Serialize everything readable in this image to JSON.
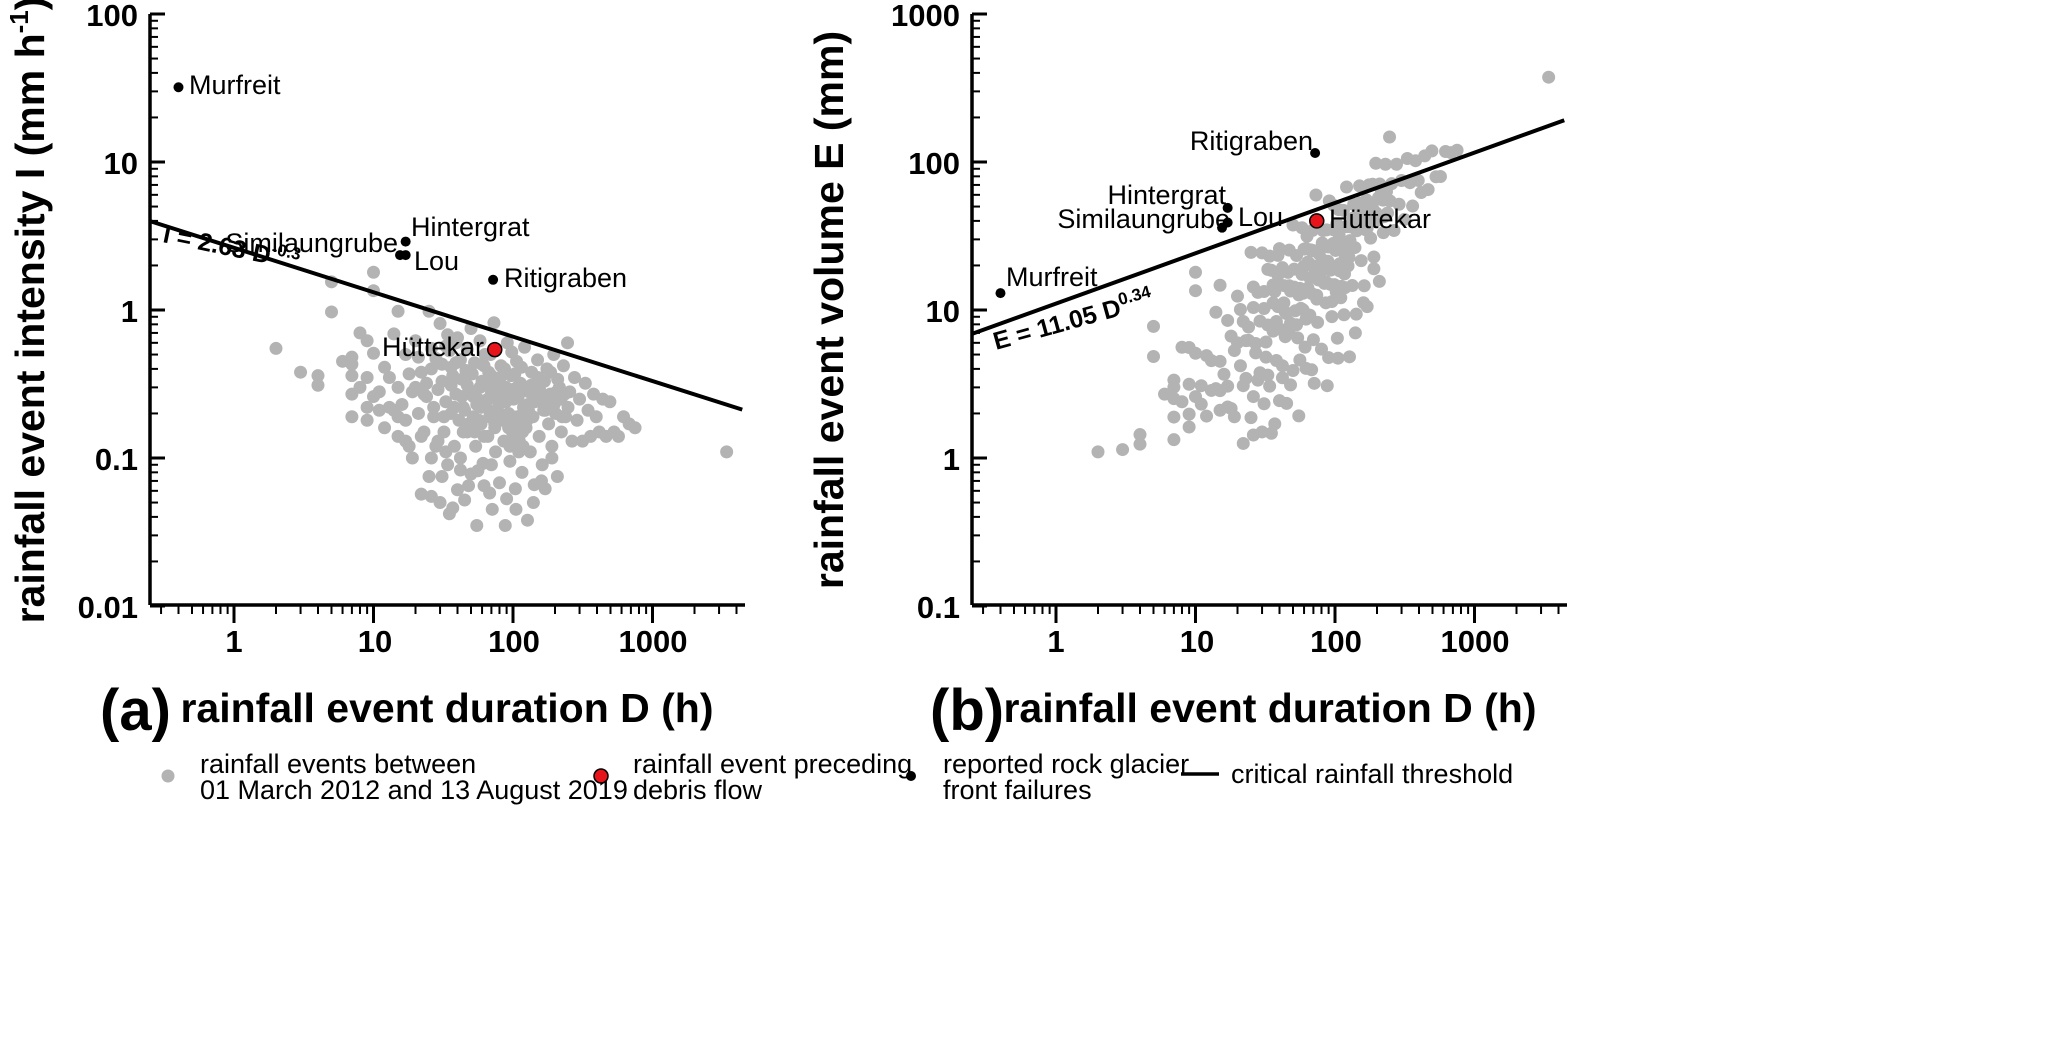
{
  "chart_data": [
    {
      "type": "scatter",
      "panel_label": "(a)",
      "xlabel": "rainfall event duration D (h)",
      "ylabel_main": "rainfall event intensity I (mm h",
      "ylabel_sup": "-1",
      "ylabel_end": ")",
      "xscale": "log",
      "yscale": "log",
      "xlim": [
        0.25,
        4500
      ],
      "ylim": [
        0.01,
        100
      ],
      "x_ticks": [
        "1",
        "10",
        "100",
        "1000"
      ],
      "y_ticks": [
        "0.01",
        "0.1",
        "1",
        "10",
        "100"
      ],
      "grid": false,
      "threshold": {
        "label": "I = 2.63 D",
        "exponent_label": "-0.3",
        "coefficient": 2.63,
        "exponent": -0.3
      },
      "rock_glacier_failures": [
        {
          "name": "Murfreit",
          "x": 0.4,
          "y": 32
        },
        {
          "name": "Hintergrat",
          "x": 17,
          "y": 2.9
        },
        {
          "name": "Similaungrube",
          "x": 15.5,
          "y": 2.35
        },
        {
          "name": "Lou",
          "x": 17,
          "y": 2.35
        },
        {
          "name": "Ritigraben",
          "x": 72,
          "y": 1.6
        }
      ],
      "debris_flow_event": {
        "name": "Hüttekar",
        "x": 74,
        "y": 0.54
      },
      "rainfall_events": [
        [
          2,
          0.55
        ],
        [
          3,
          0.38
        ],
        [
          4,
          0.36
        ],
        [
          4,
          0.31
        ],
        [
          5,
          1.55
        ],
        [
          5,
          0.97
        ],
        [
          6,
          0.45
        ],
        [
          7,
          0.48
        ],
        [
          7,
          0.43
        ],
        [
          7,
          0.36
        ],
        [
          7,
          0.27
        ],
        [
          7,
          0.19
        ],
        [
          8,
          0.7
        ],
        [
          9,
          0.62
        ],
        [
          9,
          0.35
        ],
        [
          9,
          0.22
        ],
        [
          10,
          1.8
        ],
        [
          10,
          1.35
        ],
        [
          10,
          0.51
        ],
        [
          10,
          0.26
        ],
        [
          11,
          0.21
        ],
        [
          12,
          0.41
        ],
        [
          12,
          0.16
        ],
        [
          13,
          0.35
        ],
        [
          14,
          0.69
        ],
        [
          14,
          0.21
        ],
        [
          15,
          0.98
        ],
        [
          15,
          0.3
        ],
        [
          15,
          0.14
        ],
        [
          16,
          0.23
        ],
        [
          17,
          0.5
        ],
        [
          17,
          0.18
        ],
        [
          18,
          0.12
        ],
        [
          19,
          0.28
        ],
        [
          20,
          0.62
        ],
        [
          21,
          0.48
        ],
        [
          21,
          0.2
        ],
        [
          22,
          0.38
        ],
        [
          22,
          0.057
        ],
        [
          23,
          0.15
        ],
        [
          24,
          0.26
        ],
        [
          25,
          0.98
        ],
        [
          25,
          0.075
        ],
        [
          26,
          0.4
        ],
        [
          26,
          0.055
        ],
        [
          27,
          0.19
        ],
        [
          28,
          0.12
        ],
        [
          29,
          0.29
        ],
        [
          30,
          0.81
        ],
        [
          30,
          0.05
        ],
        [
          31,
          0.43
        ],
        [
          31,
          0.075
        ],
        [
          32,
          0.15
        ],
        [
          33,
          0.24
        ],
        [
          34,
          0.68
        ],
        [
          34,
          0.09
        ],
        [
          35,
          0.53
        ],
        [
          35,
          0.042
        ],
        [
          36,
          0.2
        ],
        [
          37,
          0.36
        ],
        [
          38,
          0.12
        ],
        [
          39,
          0.27
        ],
        [
          40,
          0.65
        ],
        [
          40,
          0.061
        ],
        [
          41,
          0.18
        ],
        [
          42,
          0.46
        ],
        [
          42,
          0.1
        ],
        [
          44,
          0.22
        ],
        [
          45,
          0.052
        ],
        [
          46,
          0.39
        ],
        [
          47,
          0.15
        ],
        [
          48,
          0.28
        ],
        [
          50,
          0.75
        ],
        [
          50,
          0.078
        ],
        [
          52,
          0.19
        ],
        [
          53,
          0.44
        ],
        [
          54,
          0.12
        ],
        [
          55,
          0.035
        ],
        [
          56,
          0.25
        ],
        [
          58,
          0.62
        ],
        [
          59,
          0.17
        ],
        [
          60,
          0.33
        ],
        [
          61,
          0.092
        ],
        [
          63,
          0.5
        ],
        [
          64,
          0.22
        ],
        [
          66,
          0.14
        ],
        [
          67,
          0.38
        ],
        [
          68,
          0.058
        ],
        [
          70,
          0.28
        ],
        [
          71,
          0.045
        ],
        [
          73,
          0.82
        ],
        [
          74,
          0.16
        ],
        [
          75,
          0.11
        ],
        [
          77,
          0.31
        ],
        [
          79,
          0.23
        ],
        [
          80,
          0.068
        ],
        [
          82,
          0.42
        ],
        [
          84,
          0.18
        ],
        [
          86,
          0.13
        ],
        [
          88,
          0.035
        ],
        [
          89,
          0.3
        ],
        [
          91,
          0.6
        ],
        [
          93,
          0.2
        ],
        [
          95,
          0.095
        ],
        [
          97,
          0.36
        ],
        [
          99,
          0.15
        ],
        [
          101,
          0.25
        ],
        [
          104,
          0.062
        ],
        [
          106,
          0.45
        ],
        [
          108,
          0.19
        ],
        [
          111,
          0.13
        ],
        [
          113,
          0.32
        ],
        [
          116,
          0.08
        ],
        [
          119,
          0.22
        ],
        [
          121,
          0.56
        ],
        [
          124,
          0.16
        ],
        [
          127,
          0.038
        ],
        [
          130,
          0.28
        ],
        [
          133,
          0.11
        ],
        [
          136,
          0.38
        ],
        [
          139,
          0.19
        ],
        [
          142,
          0.066
        ],
        [
          146,
          0.26
        ],
        [
          150,
          0.46
        ],
        [
          154,
          0.14
        ],
        [
          158,
          0.33
        ],
        [
          162,
          0.09
        ],
        [
          166,
          0.21
        ],
        [
          170,
          0.062
        ],
        [
          175,
          0.4
        ],
        [
          180,
          0.17
        ],
        [
          185,
          0.27
        ],
        [
          190,
          0.1
        ],
        [
          196,
          0.5
        ],
        [
          202,
          0.2
        ],
        [
          208,
          0.075
        ],
        [
          215,
          0.3
        ],
        [
          222,
          0.15
        ],
        [
          230,
          0.42
        ],
        [
          238,
          0.19
        ],
        [
          246,
          0.6
        ],
        [
          255,
          0.28
        ],
        [
          265,
          0.13
        ],
        [
          276,
          0.35
        ],
        [
          288,
          0.18
        ],
        [
          300,
          0.25
        ],
        [
          315,
          0.13
        ],
        [
          330,
          0.32
        ],
        [
          345,
          0.21
        ],
        [
          360,
          0.14
        ],
        [
          378,
          0.27
        ],
        [
          395,
          0.19
        ],
        [
          415,
          0.15
        ],
        [
          440,
          0.25
        ],
        [
          465,
          0.14
        ],
        [
          495,
          0.24
        ],
        [
          530,
          0.15
        ],
        [
          570,
          0.14
        ],
        [
          620,
          0.19
        ],
        [
          680,
          0.17
        ],
        [
          750,
          0.16
        ],
        [
          3400,
          0.11
        ],
        [
          58,
          0.3
        ],
        [
          62,
          0.42
        ],
        [
          66,
          0.25
        ],
        [
          70,
          0.36
        ],
        [
          76,
          0.21
        ],
        [
          81,
          0.27
        ],
        [
          87,
          0.4
        ],
        [
          92,
          0.29
        ],
        [
          98,
          0.52
        ],
        [
          103,
          0.37
        ],
        [
          109,
          0.26
        ],
        [
          115,
          0.41
        ],
        [
          122,
          0.3
        ],
        [
          128,
          0.23
        ],
        [
          135,
          0.31
        ],
        [
          143,
          0.24
        ],
        [
          151,
          0.35
        ],
        [
          159,
          0.24
        ],
        [
          168,
          0.33
        ],
        [
          177,
          0.25
        ],
        [
          186,
          0.38
        ],
        [
          197,
          0.23
        ],
        [
          209,
          0.34
        ],
        [
          221,
          0.25
        ],
        [
          234,
          0.27
        ],
        [
          248,
          0.22
        ],
        [
          36,
          0.31
        ],
        [
          39,
          0.44
        ],
        [
          43,
          0.26
        ],
        [
          47,
          0.54
        ],
        [
          51,
          0.37
        ],
        [
          55,
          0.23
        ],
        [
          60,
          0.43
        ],
        [
          64,
          0.33
        ],
        [
          69,
          0.5
        ],
        [
          28,
          0.47
        ],
        [
          31,
          0.33
        ],
        [
          33,
          0.57
        ],
        [
          36,
          0.41
        ],
        [
          39,
          0.6
        ],
        [
          43,
          0.34
        ],
        [
          47,
          0.31
        ],
        [
          51,
          0.28
        ],
        [
          24,
          0.32
        ],
        [
          26,
          0.55
        ],
        [
          44,
          0.15
        ],
        [
          48,
          0.17
        ],
        [
          53,
          0.15
        ],
        [
          57,
          0.18
        ],
        [
          62,
          0.14
        ],
        [
          68,
          0.19
        ],
        [
          74,
          0.17
        ],
        [
          80,
          0.2
        ],
        [
          86,
          0.18
        ],
        [
          93,
          0.16
        ],
        [
          100,
          0.19
        ],
        [
          108,
          0.17
        ],
        [
          117,
          0.15
        ],
        [
          126,
          0.18
        ],
        [
          95,
          0.12
        ],
        [
          102,
          0.13
        ],
        [
          110,
          0.11
        ],
        [
          118,
          0.12
        ],
        [
          90,
          0.053
        ],
        [
          105,
          0.045
        ],
        [
          140,
          0.05
        ],
        [
          160,
          0.07
        ],
        [
          190,
          0.12
        ],
        [
          56,
          0.082
        ],
        [
          62,
          0.065
        ],
        [
          70,
          0.09
        ],
        [
          48,
          0.065
        ],
        [
          42,
          0.083
        ],
        [
          37,
          0.046
        ],
        [
          33,
          0.11
        ],
        [
          29,
          0.13
        ],
        [
          26,
          0.1
        ],
        [
          22,
          0.14
        ],
        [
          19,
          0.1
        ],
        [
          17,
          0.13
        ],
        [
          15,
          0.19
        ],
        [
          13,
          0.22
        ],
        [
          11,
          0.28
        ],
        [
          9,
          0.18
        ],
        [
          8,
          0.3
        ],
        [
          18,
          0.37
        ],
        [
          20,
          0.3
        ],
        [
          23,
          0.27
        ],
        [
          27,
          0.22
        ],
        [
          32,
          0.19
        ],
        [
          38,
          0.22
        ],
        [
          45,
          0.21
        ],
        [
          52,
          0.26
        ],
        [
          59,
          0.22
        ],
        [
          66,
          0.31
        ],
        [
          73,
          0.27
        ],
        [
          81,
          0.35
        ],
        [
          89,
          0.24
        ],
        [
          97,
          0.29
        ],
        [
          107,
          0.3
        ],
        [
          118,
          0.2
        ],
        [
          129,
          0.21
        ],
        [
          141,
          0.25
        ],
        [
          155,
          0.29
        ],
        [
          170,
          0.21
        ],
        [
          187,
          0.22
        ],
        [
          205,
          0.28
        ],
        [
          225,
          0.19
        ]
      ]
    },
    {
      "type": "scatter",
      "panel_label": "(b)",
      "xlabel": "rainfall event duration D (h)",
      "ylabel": "rainfall event volume E (mm)",
      "xscale": "log",
      "yscale": "log",
      "xlim": [
        0.25,
        4500
      ],
      "ylim": [
        0.1,
        1000
      ],
      "x_ticks": [
        "1",
        "10",
        "100",
        "1000"
      ],
      "y_ticks": [
        "0.1",
        "1",
        "10",
        "100",
        "1000"
      ],
      "grid": false,
      "threshold": {
        "label": "E = 11.05 D",
        "exponent_label": "0.34",
        "coefficient": 11.05,
        "exponent": 0.34
      },
      "rock_glacier_failures": [
        {
          "name": "Murfreit",
          "x": 0.4,
          "y": 13
        },
        {
          "name": "Hintergrat",
          "x": 17,
          "y": 49
        },
        {
          "name": "Similaungrube",
          "x": 15.5,
          "y": 36
        },
        {
          "name": "Lou",
          "x": 17,
          "y": 39
        },
        {
          "name": "Ritigraben",
          "x": 72,
          "y": 115
        }
      ],
      "debris_flow_event": {
        "name": "Hüttekar",
        "x": 74,
        "y": 40
      }
    }
  ],
  "legend": {
    "position": "bottom",
    "items": [
      {
        "marker": "gray-dot",
        "line1": "rainfall events between",
        "line2": "01 March 2012 and 13 August 2019"
      },
      {
        "marker": "red-dot",
        "line1": "rainfall event preceding",
        "line2": "debris flow"
      },
      {
        "marker": "black-dot",
        "line1": "reported rock glacier",
        "line2": "front failures"
      },
      {
        "marker": "line",
        "line1": "critical rainfall threshold",
        "line2": ""
      }
    ]
  },
  "colors": {
    "rainfall_events": "#b3b3b3",
    "debris_flow": "#e8141c",
    "rock_glacier": "#000000",
    "threshold": "#000000"
  }
}
